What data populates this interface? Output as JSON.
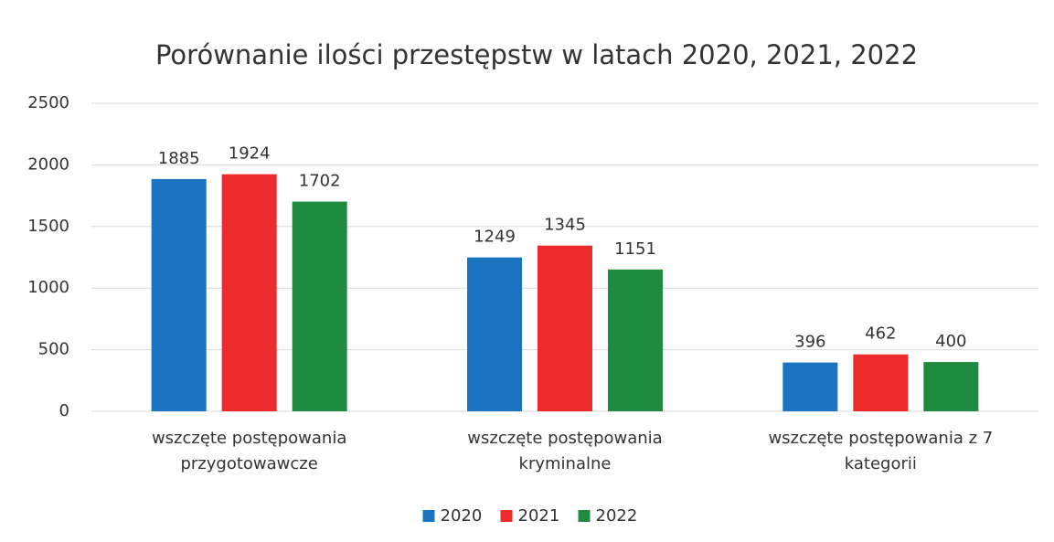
{
  "chart_data": {
    "type": "bar",
    "title": "Porównanie ilości przestępstw w latach 2020, 2021, 2022",
    "categories": [
      "wszczęte postępowania przygotowawcze",
      "wszczęte postępowania kryminalne",
      "wszczęte postępowania z 7 kategorii"
    ],
    "series": [
      {
        "name": "2020",
        "color": "#1b74c2",
        "values": [
          1885,
          1249,
          396
        ]
      },
      {
        "name": "2021",
        "color": "#ee2b2b",
        "values": [
          1924,
          1345,
          462
        ]
      },
      {
        "name": "2022",
        "color": "#1e8b40",
        "values": [
          1702,
          1151,
          400
        ]
      }
    ],
    "ylim": [
      0,
      2500
    ],
    "yticks": [
      0,
      500,
      1000,
      1500,
      2000,
      2500
    ],
    "grid": true,
    "legend": "bottom"
  }
}
